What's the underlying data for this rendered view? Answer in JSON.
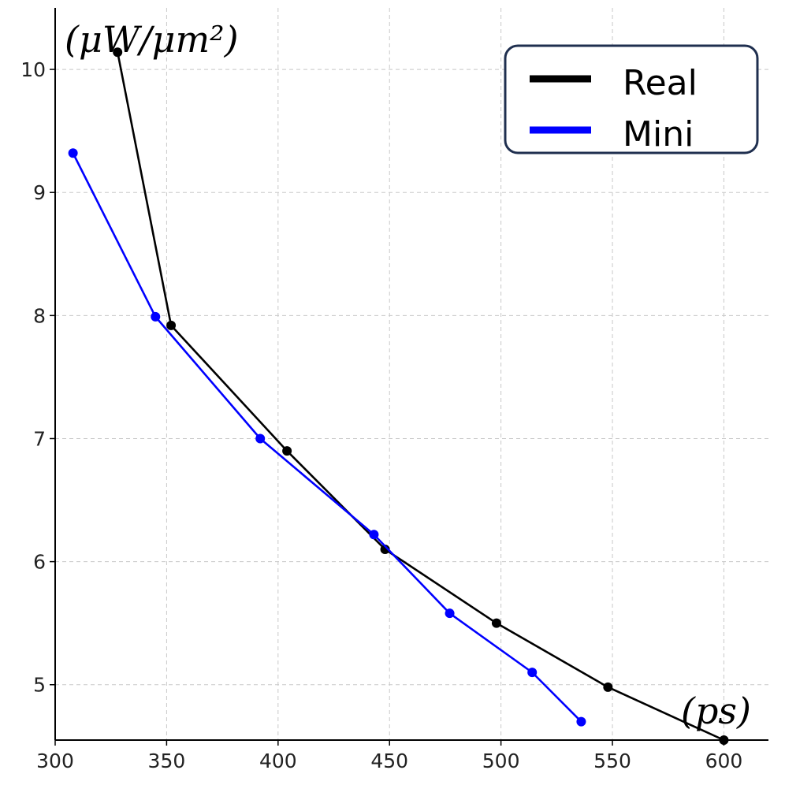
{
  "chart_data": {
    "type": "line",
    "title": "",
    "xlabel": "(ps)",
    "ylabel": "(μW/μm²)",
    "xlim": [
      300,
      620
    ],
    "ylim": [
      4.55,
      10.5
    ],
    "x_ticks": [
      300,
      350,
      400,
      450,
      500,
      550,
      600
    ],
    "y_ticks": [
      5,
      6,
      7,
      8,
      9,
      10
    ],
    "grid": true,
    "legend_position": "top-right",
    "series": [
      {
        "name": "Real",
        "color": "#000000",
        "x": [
          328,
          352,
          404,
          448,
          498,
          548,
          600
        ],
        "y": [
          10.14,
          7.92,
          6.9,
          6.1,
          5.5,
          4.98,
          4.55
        ]
      },
      {
        "name": "Mini",
        "color": "#0000ff",
        "x": [
          308,
          345,
          392,
          443,
          477,
          514,
          536
        ],
        "y": [
          9.32,
          7.99,
          7.0,
          6.22,
          5.58,
          5.1,
          4.7
        ]
      }
    ]
  }
}
